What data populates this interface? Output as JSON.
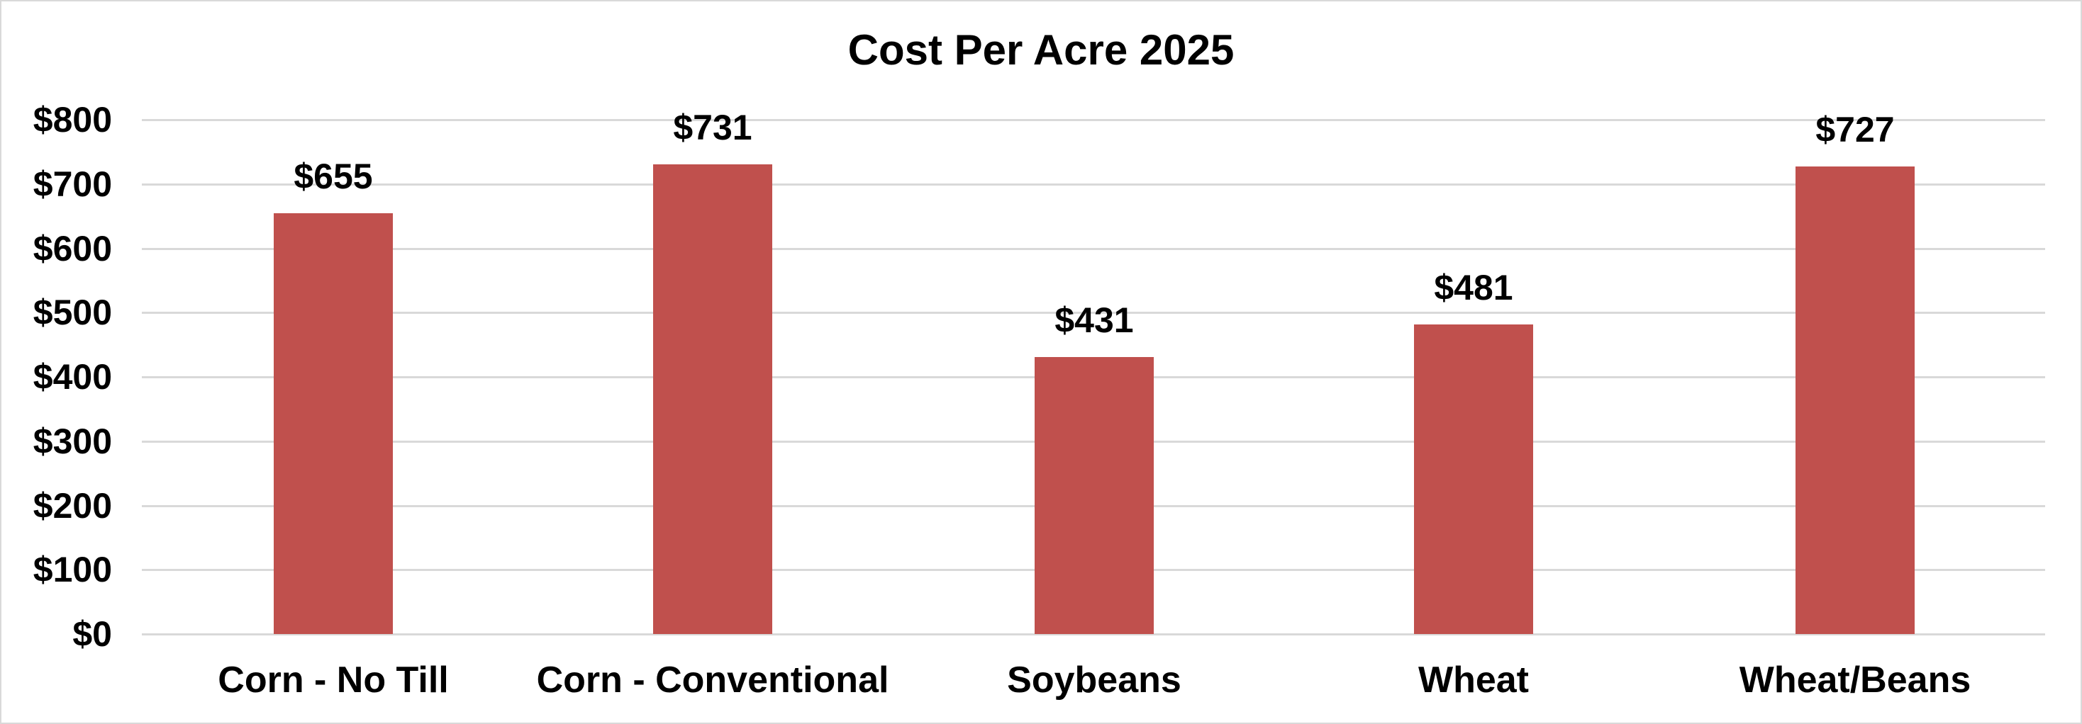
{
  "chart_data": {
    "type": "bar",
    "title": "Cost Per Acre 2025",
    "categories": [
      "Corn - No Till",
      "Corn - Conventional",
      "Soybeans",
      "Wheat",
      "Wheat/Beans"
    ],
    "values": [
      655,
      731,
      431,
      481,
      727
    ],
    "data_labels": [
      "$655",
      "$731",
      "$431",
      "$481",
      "$727"
    ],
    "xlabel": "",
    "ylabel": "",
    "ylim": [
      0,
      800
    ],
    "yticks": [
      "$0",
      "$100",
      "$200",
      "$300",
      "$400",
      "$500",
      "$600",
      "$700",
      "$800"
    ],
    "grid": true,
    "legend": null,
    "bar_color": "#C0504D",
    "gridline_color": "#D9D9D9"
  }
}
